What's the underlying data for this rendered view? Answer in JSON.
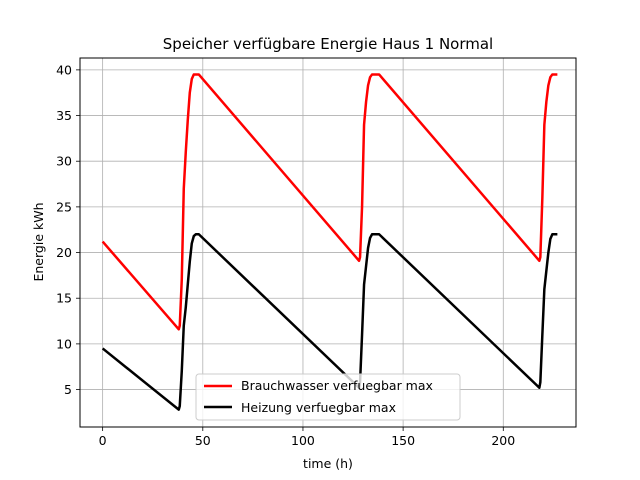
{
  "chart_data": {
    "type": "line",
    "title": "Speicher verfügbare Energie Haus 1 Normal",
    "xlabel": "time (h)",
    "ylabel": "Energie kWh",
    "xlim": [
      -11.3,
      236.3
    ],
    "ylim": [
      0.9,
      41.3
    ],
    "xticks": [
      0,
      50,
      100,
      150,
      200
    ],
    "yticks": [
      5,
      10,
      15,
      20,
      25,
      30,
      35,
      40
    ],
    "grid": true,
    "legend": "lower-center",
    "series": [
      {
        "name": "Brauchwasser verfuegbar max",
        "color": "#ff0000",
        "x": [
          0,
          38,
          38.5,
          39.5,
          40.5,
          41.5,
          42.5,
          43.5,
          44.5,
          45.5,
          46.5,
          47.5,
          48,
          128,
          128.5,
          129.5,
          130.5,
          131.5,
          132.5,
          133.5,
          134.5,
          135.5,
          136.5,
          137.5,
          138,
          218,
          218.5,
          219.5,
          220.5,
          221.5,
          222.5,
          223.5,
          224.5,
          225.5,
          226.5,
          227
        ],
        "y": [
          21.2,
          11.6,
          12.0,
          17.0,
          27.0,
          31.0,
          34.5,
          37.5,
          39.0,
          39.5,
          39.5,
          39.5,
          39.5,
          19.1,
          19.5,
          25.0,
          34.0,
          36.5,
          38.3,
          39.2,
          39.5,
          39.5,
          39.5,
          39.5,
          39.5,
          19.1,
          19.5,
          26.0,
          34.0,
          36.5,
          38.3,
          39.2,
          39.5,
          39.5,
          39.5,
          39.5
        ]
      },
      {
        "name": "Heizung verfuegbar max",
        "color": "#000000",
        "x": [
          0,
          38,
          38.5,
          39.5,
          40.5,
          41.5,
          42.5,
          43.5,
          44.5,
          45.5,
          46.5,
          47.5,
          48,
          128,
          128.5,
          129.5,
          130.5,
          131.5,
          132.5,
          133.5,
          134.5,
          135.5,
          136.5,
          137.5,
          138,
          218,
          218.5,
          219.5,
          220.5,
          221.5,
          222.5,
          223.5,
          224.5,
          225.5,
          226.5,
          227
        ],
        "y": [
          9.5,
          2.8,
          3.2,
          7.0,
          12.0,
          14.0,
          16.5,
          19.0,
          21.0,
          21.8,
          22.0,
          22.0,
          22.0,
          5.2,
          5.8,
          11.0,
          16.5,
          18.5,
          20.5,
          21.6,
          22.0,
          22.0,
          22.0,
          22.0,
          22.0,
          5.2,
          5.8,
          11.0,
          16.0,
          18.0,
          20.0,
          21.5,
          22.0,
          22.0,
          22.0,
          22.0
        ]
      }
    ]
  }
}
